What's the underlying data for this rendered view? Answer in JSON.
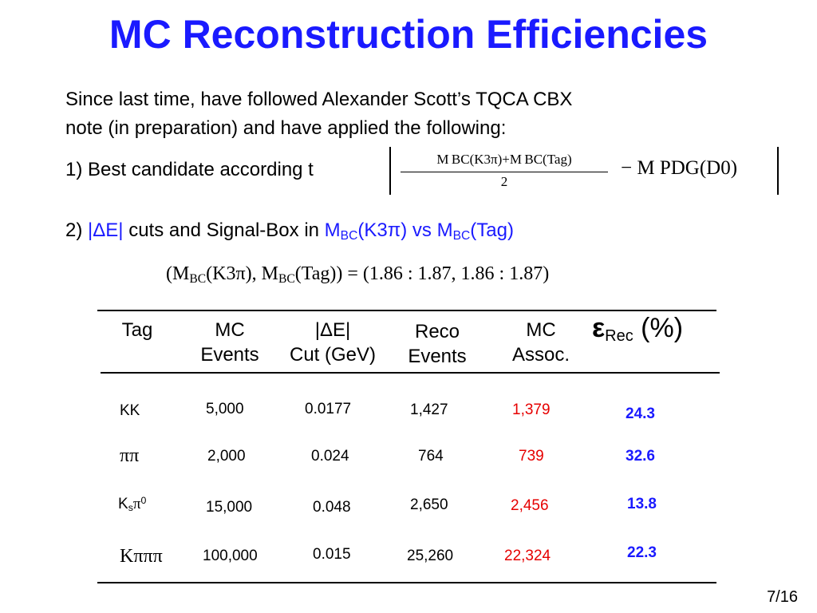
{
  "slide": {
    "title": "MC Reconstruction Efficiencies",
    "intro_line1": "Since last time, have followed Alexander Scott’s TQCA CBX",
    "intro_line2": "note (in preparation) and have applied the following:",
    "item1": "1) Best candidate according t",
    "eq_numerator": "M BC(K3π)+M BC(Tag)",
    "eq_denominator": "2",
    "eq_rest": "− M PDG(D0)",
    "item2_prefix": "2) ",
    "item2_dE": "|ΔE|",
    "item2_middle": " cuts and Signal-Box in ",
    "item2_m1": "M",
    "item2_m1_sub": "BC",
    "item2_k3pi": "(K3π) vs ",
    "item2_m2": "M",
    "item2_m2_sub": "BC",
    "item2_tag": "(Tag)",
    "box_eq": {
      "open": "(M",
      "sub1": "BC",
      "part2": "(K3π), M",
      "sub2": "BC",
      "part3": "(Tag)) = (1.86 : 1.87, 1.86 : 1.87)"
    },
    "page": "7/16"
  },
  "table": {
    "headers": {
      "tag": "Tag",
      "mc_events_1": "MC",
      "mc_events_2": "Events",
      "de_cut_1": "|ΔE|",
      "de_cut_2": "Cut (GeV)",
      "reco_1": "Reco",
      "reco_2": "Events",
      "assoc_1": "MC",
      "assoc_2": "Assoc.",
      "eff_symbol": "ε",
      "eff_sub": "Rec",
      "eff_unit": " (%)"
    },
    "rows": [
      {
        "tag": "KK",
        "mc": "5,000",
        "cut": "0.0177",
        "reco": "1,427",
        "assoc": "1,379",
        "eff": "24.3"
      },
      {
        "tag": "ππ",
        "mc": "2,000",
        "cut": "0.024",
        "reco": "764",
        "assoc": "739",
        "eff": "32.6"
      },
      {
        "tag": "K",
        "tag_sub": "s",
        "tag_tail": "π",
        "tag_sup": "0",
        "mc": "15,000",
        "cut": "0.048",
        "reco": "2,650",
        "assoc": "2,456",
        "eff": "13.8"
      },
      {
        "tag": "Kπππ",
        "mc": "100,000",
        "cut": "0.015",
        "reco": "25,260",
        "assoc": "22,324",
        "eff": "22.3"
      }
    ]
  },
  "colors": {
    "title": "#1a1aff",
    "highlight_blue": "#1a1aff",
    "assoc_red": "#e60000"
  }
}
